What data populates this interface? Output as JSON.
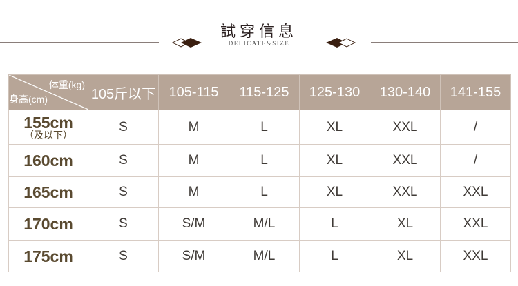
{
  "header": {
    "title": "試穿信息",
    "subtitle": "DELICATE&SIZE"
  },
  "table": {
    "corner_top": "体重(kg)",
    "corner_bottom": "身高(cm)",
    "columns": [
      "105斤以下",
      "105-115",
      "115-125",
      "125-130",
      "130-140",
      "141-155"
    ],
    "rows": [
      {
        "height": "155cm",
        "note": "（及以下）",
        "sizes": [
          "S",
          "M",
          "L",
          "XL",
          "XXL",
          "/"
        ]
      },
      {
        "height": "160cm",
        "sizes": [
          "S",
          "M",
          "L",
          "XL",
          "XXL",
          "/"
        ]
      },
      {
        "height": "165cm",
        "sizes": [
          "S",
          "M",
          "L",
          "XL",
          "XXL",
          "XXL"
        ]
      },
      {
        "height": "170cm",
        "sizes": [
          "S",
          "S/M",
          "M/L",
          "L",
          "XL",
          "XXL"
        ]
      },
      {
        "height": "175cm",
        "sizes": [
          "S",
          "S/M",
          "M/L",
          "L",
          "XL",
          "XXL"
        ]
      }
    ]
  },
  "colors": {
    "header_bg": "#b7a597",
    "row_label": "#5a4a30",
    "accent": "#3a1f10"
  }
}
